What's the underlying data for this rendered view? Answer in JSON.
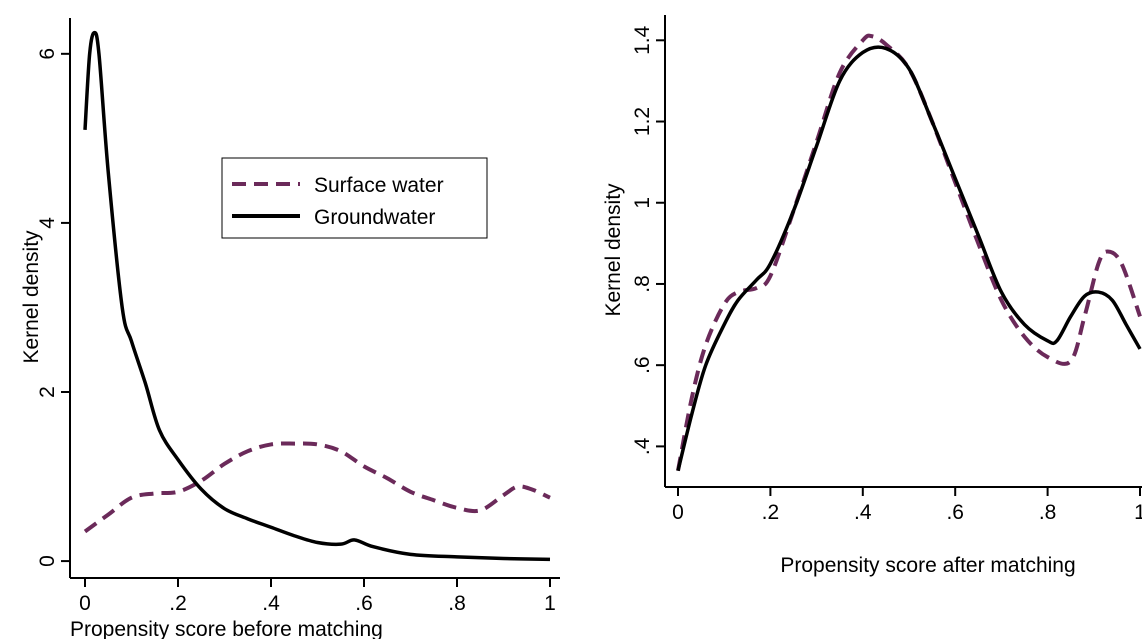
{
  "colors": {
    "surface": "#6b2a5a",
    "ground": "#000000"
  },
  "chart_data": [
    {
      "type": "line",
      "xlabel": "Propensity score before matching",
      "ylabel": "Kernel density",
      "xlim": [
        0,
        1
      ],
      "ylim": [
        -0.2,
        6.4
      ],
      "xticks": [
        0,
        0.2,
        0.4,
        0.6,
        0.8,
        1
      ],
      "xtick_labels": [
        "0",
        ".2",
        ".4",
        ".6",
        ".8",
        "1"
      ],
      "yticks": [
        0,
        2,
        4,
        6
      ],
      "ytick_labels": [
        "0",
        "2",
        "4",
        "6"
      ],
      "legend": "inside upper-middle",
      "series": [
        {
          "name": "Surface water",
          "style": "dashed",
          "x": [
            0,
            0.05,
            0.1,
            0.15,
            0.2,
            0.25,
            0.3,
            0.35,
            0.4,
            0.45,
            0.5,
            0.55,
            0.6,
            0.65,
            0.7,
            0.75,
            0.8,
            0.85,
            0.9,
            0.93,
            0.96,
            1.0
          ],
          "y": [
            0.35,
            0.55,
            0.75,
            0.8,
            0.82,
            0.95,
            1.15,
            1.3,
            1.38,
            1.39,
            1.38,
            1.3,
            1.12,
            0.98,
            0.82,
            0.72,
            0.63,
            0.6,
            0.78,
            0.88,
            0.85,
            0.75
          ]
        },
        {
          "name": "Groundwater",
          "style": "solid",
          "x": [
            0,
            0.01,
            0.02,
            0.03,
            0.05,
            0.08,
            0.1,
            0.13,
            0.16,
            0.2,
            0.25,
            0.3,
            0.35,
            0.4,
            0.45,
            0.5,
            0.55,
            0.58,
            0.62,
            0.7,
            0.8,
            0.9,
            1.0
          ],
          "y": [
            5.1,
            6.0,
            6.25,
            6.0,
            4.6,
            3.0,
            2.6,
            2.1,
            1.55,
            1.2,
            0.85,
            0.62,
            0.5,
            0.4,
            0.3,
            0.22,
            0.2,
            0.25,
            0.17,
            0.08,
            0.05,
            0.03,
            0.02
          ]
        }
      ]
    },
    {
      "type": "line",
      "xlabel": "Propensity score after matching",
      "ylabel": "Kernel density",
      "xlim": [
        0,
        1
      ],
      "ylim": [
        0.3,
        1.45
      ],
      "xticks": [
        0,
        0.2,
        0.4,
        0.6,
        0.8,
        1
      ],
      "xtick_labels": [
        "0",
        ".2",
        ".4",
        ".6",
        ".8",
        "1"
      ],
      "yticks": [
        0.4,
        0.6,
        0.8,
        1.0,
        1.2,
        1.4
      ],
      "ytick_labels": [
        ".4",
        ".6",
        ".8",
        "1",
        "1.2",
        "1.4"
      ],
      "series": [
        {
          "style": "dashed",
          "x": [
            0,
            0.03,
            0.06,
            0.1,
            0.13,
            0.17,
            0.2,
            0.25,
            0.3,
            0.35,
            0.4,
            0.42,
            0.45,
            0.5,
            0.55,
            0.6,
            0.65,
            0.7,
            0.75,
            0.8,
            0.85,
            0.88,
            0.91,
            0.93,
            0.96,
            1.0
          ],
          "y": [
            0.34,
            0.52,
            0.65,
            0.75,
            0.78,
            0.79,
            0.82,
            0.98,
            1.15,
            1.32,
            1.4,
            1.41,
            1.39,
            1.33,
            1.2,
            1.05,
            0.9,
            0.76,
            0.67,
            0.62,
            0.61,
            0.72,
            0.85,
            0.88,
            0.85,
            0.72
          ]
        },
        {
          "style": "solid",
          "x": [
            0,
            0.03,
            0.06,
            0.1,
            0.13,
            0.17,
            0.2,
            0.25,
            0.3,
            0.35,
            0.4,
            0.45,
            0.5,
            0.55,
            0.6,
            0.65,
            0.7,
            0.75,
            0.8,
            0.82,
            0.85,
            0.88,
            0.91,
            0.94,
            0.97,
            1.0
          ],
          "y": [
            0.34,
            0.48,
            0.6,
            0.7,
            0.76,
            0.81,
            0.85,
            0.98,
            1.14,
            1.3,
            1.37,
            1.38,
            1.33,
            1.2,
            1.06,
            0.92,
            0.78,
            0.7,
            0.66,
            0.66,
            0.72,
            0.77,
            0.78,
            0.76,
            0.7,
            0.64
          ]
        }
      ]
    }
  ]
}
